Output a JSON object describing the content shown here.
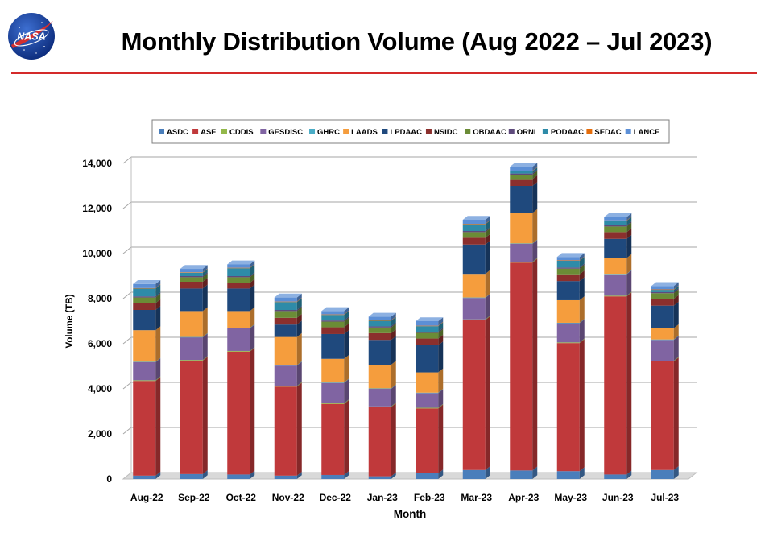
{
  "slide": {
    "title": "Monthly Distribution Volume (Aug 2022 – Jul 2023)",
    "logo_text": "NASA"
  },
  "chart_data": {
    "type": "bar",
    "stacked": true,
    "title": "",
    "xlabel": "Month",
    "ylabel": "Volume (TB)",
    "ylim": [
      0,
      14000
    ],
    "yticks": [
      0,
      2000,
      4000,
      6000,
      8000,
      10000,
      12000,
      14000
    ],
    "ytick_labels": [
      "0",
      "2,000",
      "4,000",
      "6,000",
      "8,000",
      "10,000",
      "12,000",
      "14,000"
    ],
    "grid": true,
    "legend_position": "top",
    "categories": [
      "Aug-22",
      "Sep-22",
      "Oct-22",
      "Nov-22",
      "Dec-22",
      "Jan-23",
      "Feb-23",
      "Mar-23",
      "Apr-23",
      "May-23",
      "Jun-23",
      "Jul-23"
    ],
    "series": [
      {
        "name": "ASDC",
        "color": "#4a7ebb",
        "values": [
          150,
          220,
          200,
          150,
          180,
          120,
          250,
          400,
          380,
          350,
          200,
          400
        ]
      },
      {
        "name": "ASF",
        "color": "#c0393b",
        "values": [
          4200,
          5030,
          5450,
          3950,
          3150,
          3070,
          2880,
          6650,
          9220,
          5680,
          7900,
          4820
        ]
      },
      {
        "name": "CDDIS",
        "color": "#93b84a",
        "values": [
          30,
          30,
          30,
          30,
          30,
          30,
          30,
          30,
          30,
          30,
          30,
          30
        ]
      },
      {
        "name": "GESDISC",
        "color": "#8064a2",
        "values": [
          800,
          1000,
          1000,
          900,
          900,
          780,
          650,
          950,
          800,
          850,
          950,
          920
        ]
      },
      {
        "name": "GHRC",
        "color": "#4aacc6",
        "values": [
          20,
          20,
          20,
          20,
          20,
          20,
          20,
          20,
          20,
          20,
          20,
          20
        ]
      },
      {
        "name": "LAADS",
        "color": "#f59d3d",
        "values": [
          1400,
          1150,
          750,
          1250,
          1050,
          1050,
          900,
          1050,
          1350,
          1000,
          700,
          500
        ]
      },
      {
        "name": "LPDAAC",
        "color": "#1f497d",
        "values": [
          900,
          1000,
          1000,
          550,
          1100,
          1100,
          1200,
          1300,
          1200,
          850,
          850,
          1000
        ]
      },
      {
        "name": "NSIDC",
        "color": "#8b2f2d",
        "values": [
          300,
          300,
          250,
          300,
          300,
          300,
          300,
          300,
          300,
          300,
          300,
          300
        ]
      },
      {
        "name": "OBDAAC",
        "color": "#6b8c36",
        "values": [
          250,
          200,
          250,
          300,
          250,
          250,
          250,
          250,
          200,
          250,
          250,
          250
        ]
      },
      {
        "name": "ORNL",
        "color": "#5e4a7c",
        "values": [
          50,
          50,
          50,
          50,
          50,
          50,
          50,
          50,
          50,
          50,
          50,
          50
        ]
      },
      {
        "name": "PODAAC",
        "color": "#2e8ba8",
        "values": [
          350,
          150,
          350,
          350,
          250,
          250,
          250,
          300,
          100,
          300,
          200,
          100
        ]
      },
      {
        "name": "SEDAC",
        "color": "#e46c0a",
        "values": [
          20,
          20,
          20,
          20,
          20,
          20,
          20,
          20,
          20,
          20,
          20,
          20
        ]
      },
      {
        "name": "LANCE",
        "color": "#5c8fd6",
        "values": [
          180,
          150,
          150,
          180,
          150,
          160,
          200,
          180,
          180,
          150,
          150,
          150
        ]
      }
    ]
  }
}
